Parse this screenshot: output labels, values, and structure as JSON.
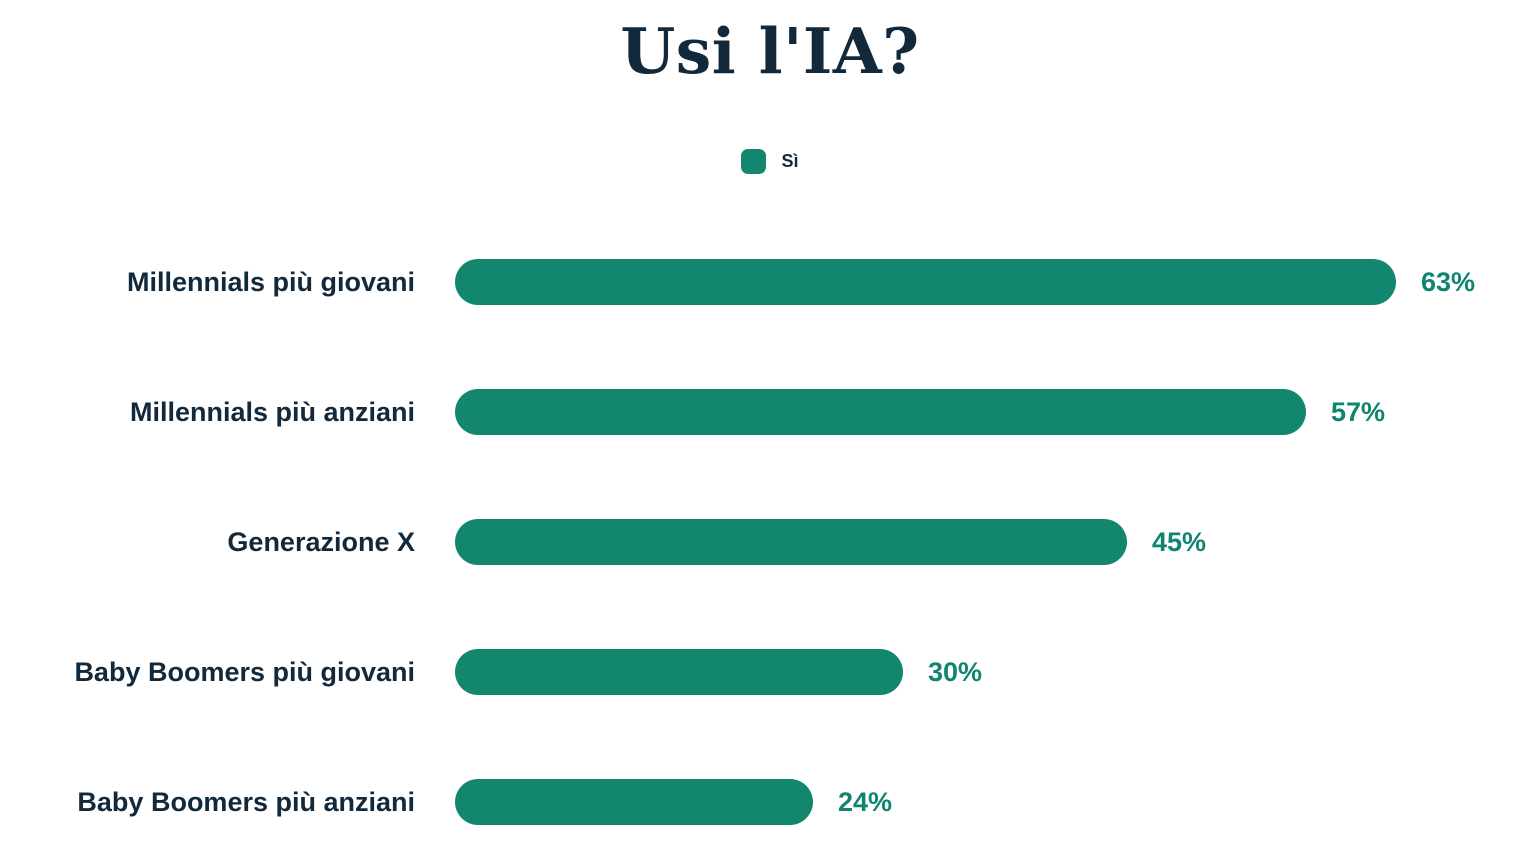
{
  "page": {
    "background": "#ffffff"
  },
  "chart_data": {
    "type": "bar",
    "orientation": "horizontal",
    "title": "Usi l'IA?",
    "categories": [
      "Millennials più giovani",
      "Millennials più anziani",
      "Generazione X",
      "Baby Boomers più giovani",
      "Baby Boomers più anziani"
    ],
    "series": [
      {
        "name": "Sì",
        "values": [
          63,
          57,
          45,
          30,
          24
        ],
        "color": "#12866f"
      }
    ],
    "value_suffix": "%",
    "value_labels": [
      "63%",
      "57%",
      "45%",
      "30%",
      "24%"
    ],
    "xlabel": "",
    "ylabel": "",
    "xlim": [
      0,
      63
    ],
    "grid": false,
    "axis_ticks_visible": false,
    "legend_position": "top-center",
    "colors": {
      "bar": "#12866f",
      "value_label": "#0f8570",
      "category_label": "#12293c",
      "title": "#12293c"
    }
  }
}
